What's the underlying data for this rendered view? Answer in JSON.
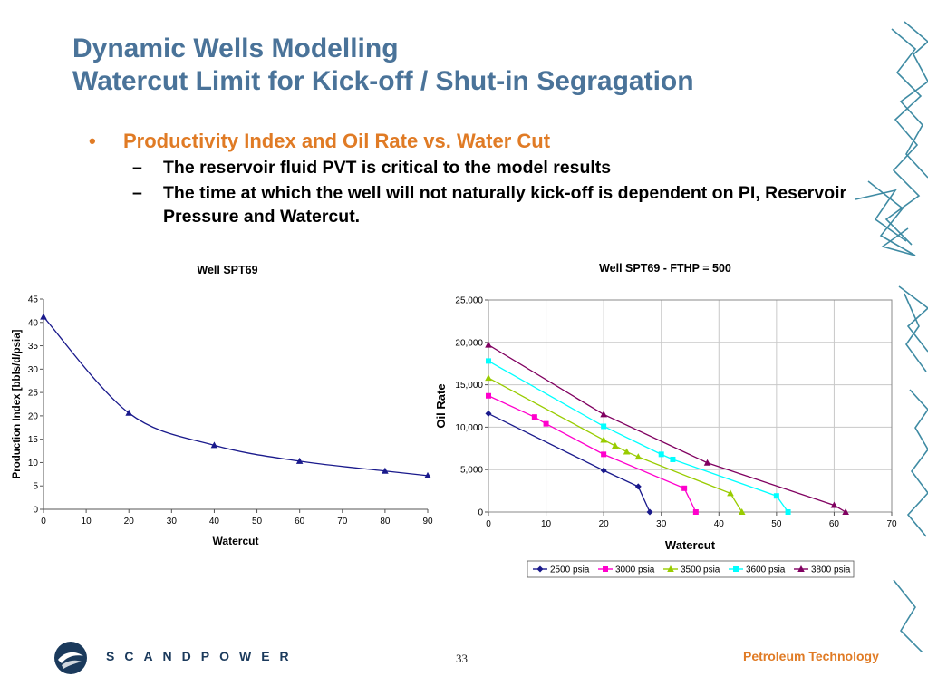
{
  "slide": {
    "title_line1": "Dynamic Wells Modelling",
    "title_line2": "Watercut Limit for Kick-off / Shut-in Segragation",
    "bullet_symbol": "•",
    "dash_symbol": "–",
    "bullet1": "Productivity Index and Oil Rate vs. Water Cut",
    "sub1": "The reservoir fluid PVT is critical to the model results",
    "sub2": "The time at which the well will not naturally kick-off is dependent on PI, Reservoir Pressure and Watercut."
  },
  "footer": {
    "brand": "SCANDPOWER",
    "page_number": "33",
    "tagline": "Petroleum Technology"
  },
  "colors": {
    "title": "#4a7399",
    "bullet": "#e07b25",
    "deco": "#2b7f9a"
  },
  "chart_data": [
    {
      "type": "line",
      "title": "Well SPT69",
      "xlabel": "Watercut",
      "ylabel": "Production Index [bbls/d/psia]",
      "xlim": [
        0,
        90
      ],
      "ylim": [
        0,
        45
      ],
      "xticks": [
        0,
        10,
        20,
        30,
        40,
        50,
        60,
        70,
        80,
        90
      ],
      "yticks": [
        0,
        5,
        10,
        15,
        20,
        25,
        30,
        35,
        40,
        45
      ],
      "grid": false,
      "series": [
        {
          "color": "#1a1a8c",
          "x": [
            0,
            20,
            40,
            60,
            80,
            90
          ],
          "y": [
            41.2,
            20.6,
            13.7,
            10.3,
            8.2,
            7.2
          ]
        }
      ]
    },
    {
      "type": "line",
      "title": "Well SPT69 - FTHP = 500",
      "xlabel": "Watercut",
      "ylabel": "Oil Rate",
      "xlim": [
        0,
        70
      ],
      "ylim": [
        0,
        25000
      ],
      "xticks": [
        0,
        10,
        20,
        30,
        40,
        50,
        60,
        70
      ],
      "yticks": [
        0,
        5000,
        10000,
        15000,
        20000,
        25000
      ],
      "ytick_labels": [
        "0",
        "5,000",
        "10,000",
        "15,000",
        "20,000",
        "25,000"
      ],
      "grid": true,
      "legend": "bottom",
      "series": [
        {
          "name": "2500 psia",
          "color": "#1a1a8c",
          "marker": "diamond",
          "x": [
            0,
            20,
            26,
            28
          ],
          "y": [
            11600,
            4900,
            3000,
            0
          ]
        },
        {
          "name": "3000 psia",
          "color": "#ff00cc",
          "marker": "square",
          "x": [
            0,
            8,
            10,
            20,
            34,
            36
          ],
          "y": [
            13700,
            11200,
            10400,
            6800,
            2800,
            0
          ]
        },
        {
          "name": "3500 psia",
          "color": "#99cc00",
          "marker": "triangle",
          "x": [
            0,
            20,
            22,
            24,
            26,
            42,
            44
          ],
          "y": [
            15800,
            8500,
            7800,
            7100,
            6500,
            2200,
            0
          ]
        },
        {
          "name": "3600 psia",
          "color": "#00ffff",
          "marker": "square",
          "x": [
            0,
            20,
            30,
            32,
            50,
            52
          ],
          "y": [
            17800,
            10100,
            6800,
            6200,
            1900,
            0
          ]
        },
        {
          "name": "3800 psia",
          "color": "#800060",
          "marker": "triangle",
          "x": [
            0,
            20,
            38,
            60,
            62
          ],
          "y": [
            19700,
            11500,
            5800,
            800,
            0
          ]
        }
      ]
    }
  ]
}
